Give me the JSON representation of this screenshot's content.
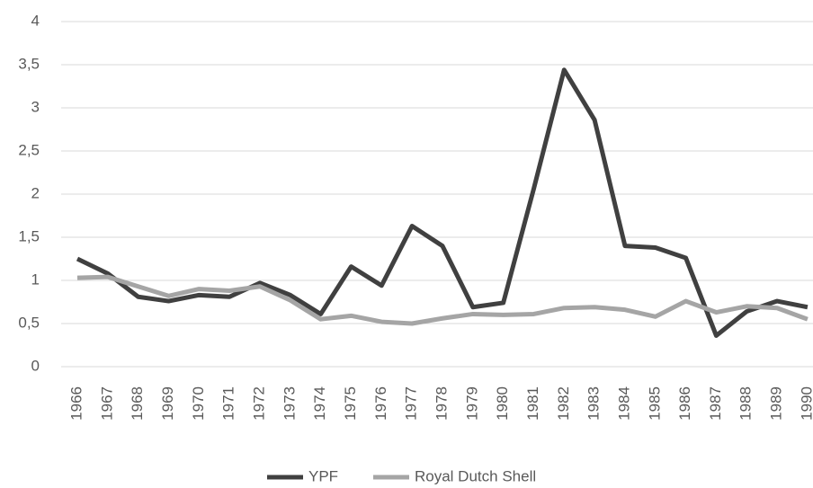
{
  "chart_data": {
    "type": "line",
    "categories": [
      "1966",
      "1967",
      "1968",
      "1969",
      "1970",
      "1971",
      "1972",
      "1973",
      "1974",
      "1975",
      "1976",
      "1977",
      "1978",
      "1979",
      "1980",
      "1981",
      "1982",
      "1983",
      "1984",
      "1985",
      "1986",
      "1987",
      "1988",
      "1989",
      "1990"
    ],
    "series": [
      {
        "name": "YPF",
        "color": "#404040",
        "values": [
          1.25,
          1.08,
          0.81,
          0.76,
          0.83,
          0.81,
          0.97,
          0.83,
          0.61,
          1.16,
          0.94,
          1.63,
          1.4,
          0.69,
          0.74,
          2.06,
          3.44,
          2.86,
          1.4,
          1.38,
          1.26,
          0.36,
          0.64,
          0.76,
          0.69
        ]
      },
      {
        "name": "Royal Dutch Shell",
        "color": "#a5a5a5",
        "values": [
          1.03,
          1.04,
          0.93,
          0.82,
          0.9,
          0.88,
          0.93,
          0.77,
          0.55,
          0.59,
          0.52,
          0.5,
          0.56,
          0.61,
          0.6,
          0.61,
          0.68,
          0.69,
          0.66,
          0.58,
          0.76,
          0.63,
          0.7,
          0.68,
          0.55
        ]
      }
    ],
    "ylim": [
      0,
      4
    ],
    "yticks": [
      0,
      {
        "value": 0.5,
        "label": "0,5"
      },
      1,
      {
        "value": 1.5,
        "label": "1,5"
      },
      2,
      {
        "value": 2.5,
        "label": "2,5"
      },
      3,
      {
        "value": 3.5,
        "label": "3,5"
      },
      4
    ],
    "grid": true,
    "legend": "bottom"
  }
}
